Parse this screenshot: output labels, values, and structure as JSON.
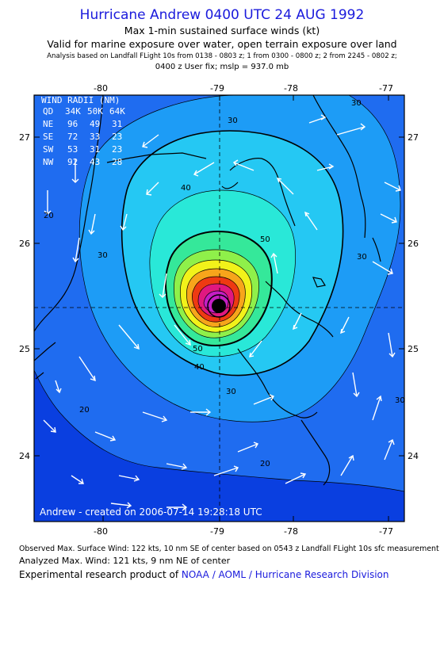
{
  "header": {
    "title": "Hurricane Andrew 0400 UTC 24 AUG 1992",
    "subtitle": "Max 1-min sustained surface winds (kt)",
    "valid_line": "Valid for marine exposure over water, open terrain exposure over land",
    "analysis_line": "Analysis based on  Landfall FLight 10s from 0138 - 0803 z;  1 from 0300 - 0800 z;  2 from 2245 - 0802 z;",
    "fix_line": "0400 z User fix; mslp = 937.0 mb"
  },
  "map": {
    "lon_ticks": [
      "-80",
      "-79",
      "-78",
      "-77"
    ],
    "lat_ticks": [
      "27",
      "26",
      "25",
      "24"
    ],
    "center_lon": -78.85,
    "center_lat": 25.4,
    "contour_labels": [
      "30",
      "40",
      "50",
      "30",
      "20",
      "30",
      "30",
      "40",
      "20",
      "20",
      "30",
      "50",
      "30"
    ],
    "credit": "Andrew - created on 2006-07-14 19:28:18 UTC",
    "colors": {
      "outer": "#0a3fe0",
      "c20": "#1f6cf0",
      "c30": "#1d9cf6",
      "c40": "#25c8f3",
      "c50": "#29e8d8",
      "c60": "#35e89a",
      "c70": "#8ff04a",
      "c80": "#f2f21a",
      "c90": "#f7a51b",
      "c100": "#ee3a12",
      "c110": "#e01880",
      "c120": "#c41ec4"
    }
  },
  "legend": {
    "title": "WIND RADII (NM)",
    "rows": [
      [
        "QD",
        "34K",
        "50K",
        "64K"
      ],
      [
        "NE",
        "96",
        "49",
        "31"
      ],
      [
        "SE",
        "72",
        "33",
        "23"
      ],
      [
        "SW",
        "53",
        "31",
        "23"
      ],
      [
        "NW",
        "92",
        "43",
        "28"
      ]
    ]
  },
  "footer": {
    "observed": "Observed Max. Surface Wind: 122 kts, 10 nm SE of center based on 0543 z Landfall FLight 10s sfc measurement",
    "analyzed": "Analyzed Max. Wind: 121 kts, 9 nm NE of center",
    "research_prefix": "Experimental research product of ",
    "research_org": "NOAA / AOML / Hurricane Research Division"
  }
}
